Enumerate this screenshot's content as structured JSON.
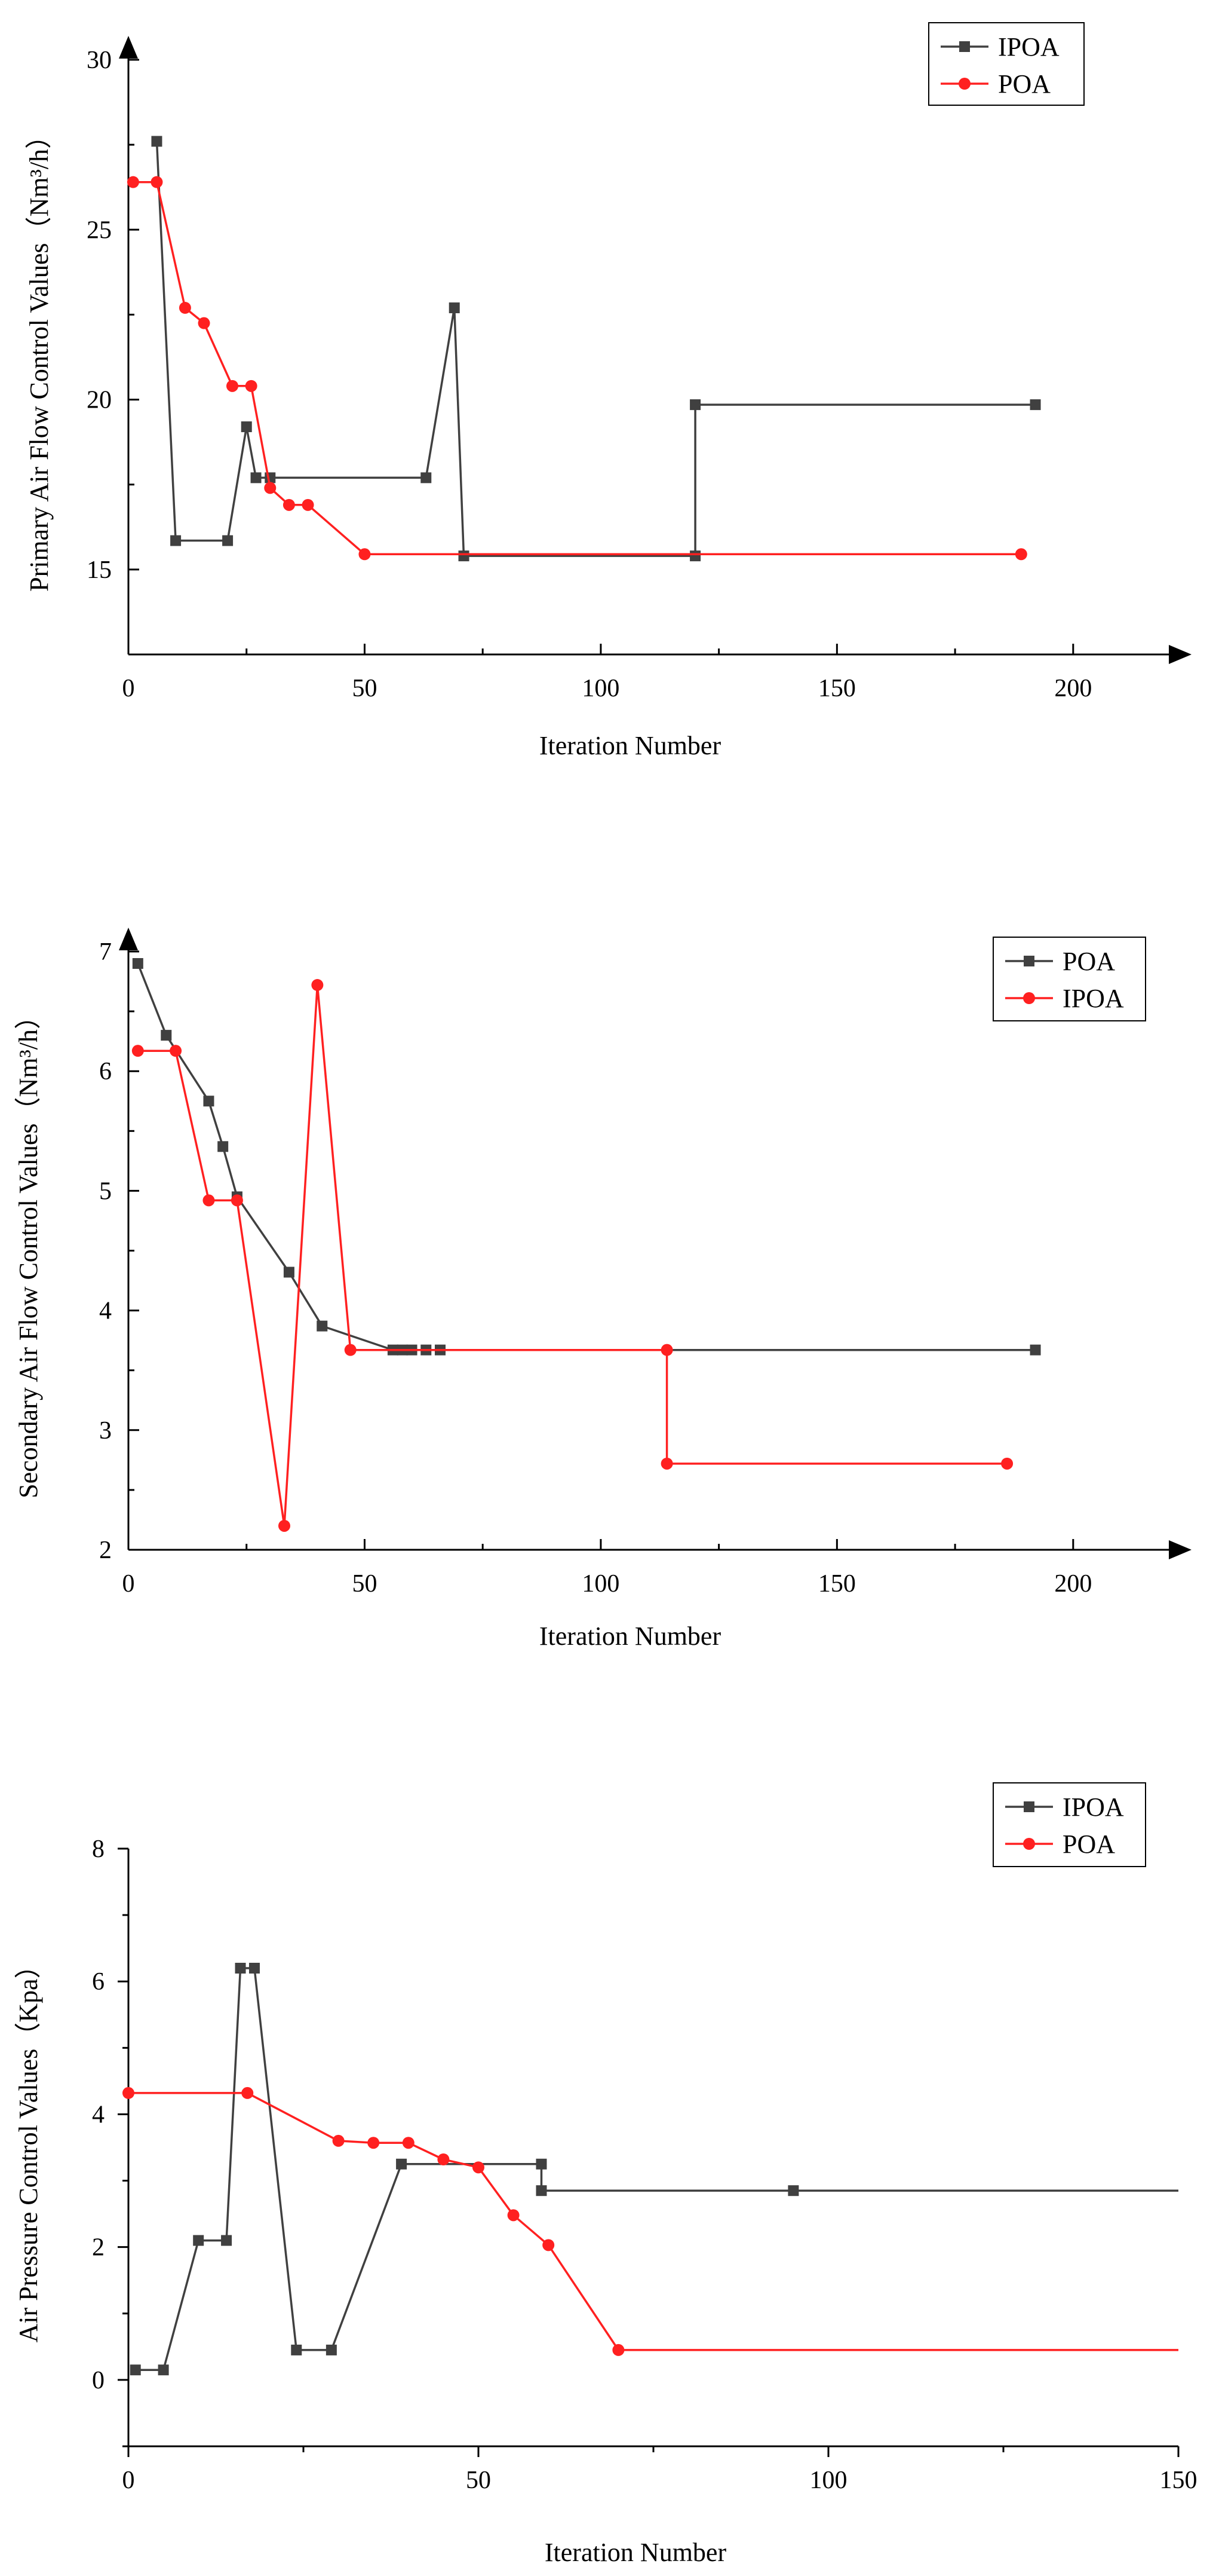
{
  "chart_data": [
    {
      "type": "line",
      "xlabel": "Iteration Number",
      "ylabel": "Primary Air Flow Control Values（Nm³/h）",
      "xlim": [
        0,
        220
      ],
      "ylim": [
        12.5,
        30
      ],
      "xticks": [
        0,
        50,
        100,
        150,
        200
      ],
      "yticks": [
        15,
        20,
        25,
        30
      ],
      "xtick_labels": [
        "0",
        "50",
        "100",
        "150",
        "200"
      ],
      "ytick_labels": [
        "15",
        "20",
        "25",
        "30"
      ],
      "legend_position": "top-right",
      "series": [
        {
          "name": "IPOA",
          "color": "#404040",
          "marker": "square",
          "x": [
            6,
            10,
            21,
            25,
            27,
            30,
            63,
            69,
            71,
            120,
            120,
            192
          ],
          "y": [
            27.6,
            15.85,
            15.85,
            19.2,
            17.7,
            17.7,
            17.7,
            22.7,
            15.4,
            15.4,
            19.85,
            19.85
          ]
        },
        {
          "name": "POA",
          "color": "#ff2020",
          "marker": "circle",
          "x": [
            1,
            6,
            12,
            16,
            22,
            26,
            30,
            34,
            38,
            50,
            189
          ],
          "y": [
            26.4,
            26.4,
            22.7,
            22.25,
            20.4,
            20.4,
            17.4,
            16.9,
            16.9,
            15.45,
            15.45
          ]
        }
      ]
    },
    {
      "type": "line",
      "xlabel": "Iteration Number",
      "ylabel": "Secondary Air Flow Control Values（Nm³/h）",
      "xlim": [
        0,
        220
      ],
      "ylim": [
        2,
        7
      ],
      "xticks": [
        0,
        50,
        100,
        150,
        200
      ],
      "yticks": [
        2,
        3,
        4,
        5,
        6,
        7
      ],
      "xtick_labels": [
        "0",
        "50",
        "100",
        "150",
        "200"
      ],
      "ytick_labels": [
        "2",
        "3",
        "4",
        "5",
        "6",
        "7"
      ],
      "legend_position": "top-right",
      "series": [
        {
          "name": "POA",
          "color": "#404040",
          "marker": "square",
          "x": [
            2,
            8,
            17,
            20,
            23,
            34,
            41,
            56,
            58,
            60,
            63,
            66,
            192
          ],
          "y": [
            6.9,
            6.3,
            5.75,
            5.37,
            4.95,
            4.32,
            3.87,
            3.67,
            3.67,
            3.67,
            3.67,
            3.67,
            3.67
          ]
        },
        {
          "name": "IPOA",
          "color": "#ff2020",
          "marker": "circle",
          "x": [
            2,
            10,
            17,
            23,
            33,
            40,
            47,
            114,
            114,
            186
          ],
          "y": [
            6.17,
            6.17,
            4.92,
            4.92,
            2.2,
            6.72,
            3.67,
            3.67,
            2.72,
            2.72
          ]
        }
      ]
    },
    {
      "type": "line",
      "xlabel": "Iteration Number",
      "ylabel": "Air Pressure Control Values（Kpa）",
      "xlim": [
        0,
        150
      ],
      "ylim": [
        -1,
        8
      ],
      "xticks": [
        0,
        50,
        100,
        150
      ],
      "yticks": [
        0,
        2,
        4,
        6,
        8
      ],
      "xtick_labels": [
        "0",
        "50",
        "100",
        "150"
      ],
      "ytick_labels": [
        "0",
        "2",
        "4",
        "6",
        "8"
      ],
      "legend_position": "top-right",
      "series": [
        {
          "name": "IPOA",
          "color": "#404040",
          "marker": "square",
          "x": [
            1,
            5,
            10,
            14,
            16,
            18,
            24,
            29,
            39,
            59,
            59,
            95,
            150
          ],
          "y": [
            0.15,
            0.15,
            2.1,
            2.1,
            6.2,
            6.2,
            0.45,
            0.45,
            3.25,
            3.25,
            2.85,
            2.85,
            2.85
          ],
          "marker_count": 12
        },
        {
          "name": "POA",
          "color": "#ff2020",
          "marker": "circle",
          "x": [
            0,
            17,
            30,
            35,
            40,
            45,
            50,
            55,
            60,
            70,
            150
          ],
          "y": [
            4.32,
            4.32,
            3.6,
            3.57,
            3.57,
            3.32,
            3.2,
            2.48,
            2.03,
            0.45,
            0.45
          ],
          "marker_count": 10
        }
      ]
    }
  ]
}
